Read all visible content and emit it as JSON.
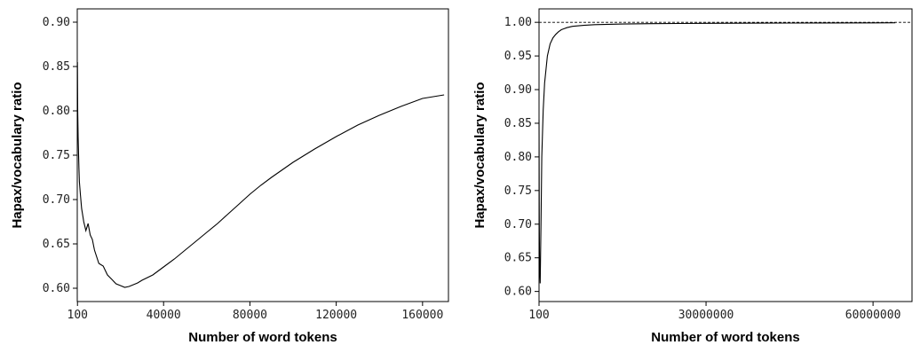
{
  "chart_data": [
    {
      "type": "line",
      "xlabel": "Number of word tokens",
      "ylabel": "Hapax/vocabulary ratio",
      "xlim": [
        0,
        172000
      ],
      "ylim": [
        0.585,
        0.915
      ],
      "x_ticks": [
        100,
        40000,
        80000,
        120000,
        160000
      ],
      "x_tick_labels": [
        "100",
        "40000",
        "80000",
        "120000",
        "160000"
      ],
      "y_ticks": [
        0.6,
        0.65,
        0.7,
        0.75,
        0.8,
        0.85,
        0.9
      ],
      "y_tick_labels": [
        "0.60",
        "0.65",
        "0.70",
        "0.75",
        "0.80",
        "0.85",
        "0.90"
      ],
      "grid": false,
      "series": [
        {
          "x": [
            100,
            200,
            400,
            600,
            800,
            1000,
            1500,
            2000,
            3000,
            4000,
            5000,
            6000,
            7000,
            8000,
            10000,
            12000,
            14000,
            16000,
            18000,
            20000,
            22000,
            24000,
            26000,
            28000,
            30000,
            35000,
            40000,
            45000,
            50000,
            55000,
            60000,
            65000,
            70000,
            75000,
            80000,
            85000,
            90000,
            100000,
            110000,
            120000,
            130000,
            140000,
            150000,
            160000,
            170000
          ],
          "y": [
            0.855,
            0.8,
            0.77,
            0.75,
            0.735,
            0.72,
            0.705,
            0.69,
            0.675,
            0.665,
            0.673,
            0.66,
            0.655,
            0.643,
            0.628,
            0.625,
            0.615,
            0.61,
            0.605,
            0.603,
            0.601,
            0.602,
            0.604,
            0.606,
            0.609,
            0.615,
            0.624,
            0.633,
            0.643,
            0.653,
            0.663,
            0.673,
            0.684,
            0.695,
            0.706,
            0.716,
            0.725,
            0.742,
            0.757,
            0.771,
            0.784,
            0.795,
            0.805,
            0.814,
            0.818
          ]
        }
      ]
    },
    {
      "type": "line",
      "xlabel": "Number of word tokens",
      "ylabel": "Hapax/vocabulary ratio",
      "xlim": [
        0,
        67000000
      ],
      "ylim": [
        0.585,
        1.02
      ],
      "x_ticks": [
        100,
        30000000,
        60000000
      ],
      "x_tick_labels": [
        "100",
        "30000000",
        "60000000"
      ],
      "y_ticks": [
        0.6,
        0.65,
        0.7,
        0.75,
        0.8,
        0.85,
        0.9,
        0.95,
        1.0
      ],
      "y_tick_labels": [
        "0.60",
        "0.65",
        "0.70",
        "0.75",
        "0.80",
        "0.85",
        "0.90",
        "0.95",
        "1.00"
      ],
      "grid": false,
      "reference_line": {
        "y": 1.0,
        "style": "dashed"
      },
      "series": [
        {
          "x": [
            100,
            50000,
            100000,
            200000,
            350000,
            500000,
            750000,
            1000000,
            1500000,
            2000000,
            2500000,
            3000000,
            3500000,
            4000000,
            5000000,
            6000000,
            8000000,
            10000000,
            15000000,
            20000000,
            30000000,
            40000000,
            50000000,
            60000000,
            64000000
          ],
          "y": [
            0.855,
            0.7,
            0.64,
            0.612,
            0.7,
            0.8,
            0.87,
            0.91,
            0.95,
            0.968,
            0.977,
            0.982,
            0.986,
            0.989,
            0.992,
            0.994,
            0.9955,
            0.9965,
            0.9975,
            0.998,
            0.9985,
            0.9988,
            0.999,
            0.9992,
            0.9993
          ]
        }
      ]
    }
  ]
}
